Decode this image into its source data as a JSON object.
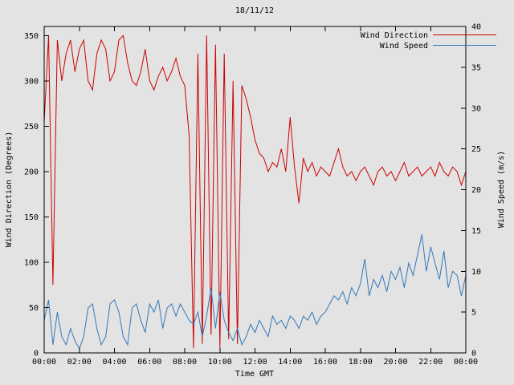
{
  "chart_data": {
    "type": "line",
    "title": "18/11/12",
    "xlabel": "Time GMT",
    "ylabel_left": "Wind Direction (Degrees)",
    "ylabel_right": "Wind Speed (m/s)",
    "grid": false,
    "legend_position": "top-right",
    "x_range_hours": [
      0,
      24
    ],
    "x_tick_labels": [
      "00:00",
      "02:00",
      "04:00",
      "06:00",
      "08:00",
      "10:00",
      "12:00",
      "14:00",
      "16:00",
      "18:00",
      "20:00",
      "22:00",
      "00:00"
    ],
    "y_left": {
      "min": 0,
      "max": 360,
      "ticks": [
        0,
        50,
        100,
        150,
        200,
        250,
        300,
        350
      ]
    },
    "y_right": {
      "min": 0,
      "max": 40,
      "ticks": [
        0,
        5,
        10,
        15,
        20,
        25,
        30,
        35,
        40
      ]
    },
    "x_hours": [
      0,
      0.25,
      0.5,
      0.75,
      1,
      1.25,
      1.5,
      1.75,
      2,
      2.25,
      2.5,
      2.75,
      3,
      3.25,
      3.5,
      3.75,
      4,
      4.25,
      4.5,
      4.75,
      5,
      5.25,
      5.5,
      5.75,
      6,
      6.25,
      6.5,
      6.75,
      7,
      7.25,
      7.5,
      7.75,
      8,
      8.25,
      8.5,
      8.75,
      9,
      9.25,
      9.5,
      9.75,
      10,
      10.25,
      10.5,
      10.75,
      11,
      11.25,
      11.5,
      11.75,
      12,
      12.25,
      12.5,
      12.75,
      13,
      13.25,
      13.5,
      13.75,
      14,
      14.25,
      14.5,
      14.75,
      15,
      15.25,
      15.5,
      15.75,
      16,
      16.25,
      16.5,
      16.75,
      17,
      17.25,
      17.5,
      17.75,
      18,
      18.25,
      18.5,
      18.75,
      19,
      19.25,
      19.5,
      19.75,
      20,
      20.25,
      20.5,
      20.75,
      21,
      21.25,
      21.5,
      21.75,
      22,
      22.25,
      22.5,
      22.75,
      23,
      23.25,
      23.5,
      23.75,
      24
    ],
    "series": [
      {
        "name": "Wind Direction",
        "axis": "left",
        "color": "#cc0000",
        "values": [
          255,
          350,
          75,
          345,
          300,
          330,
          345,
          310,
          335,
          345,
          300,
          290,
          330,
          345,
          335,
          300,
          310,
          345,
          350,
          320,
          300,
          295,
          310,
          335,
          300,
          290,
          305,
          315,
          300,
          310,
          325,
          305,
          295,
          240,
          5,
          330,
          10,
          350,
          20,
          340,
          5,
          330,
          15,
          300,
          10,
          295,
          280,
          260,
          235,
          220,
          215,
          200,
          210,
          205,
          225,
          200,
          260,
          205,
          165,
          215,
          200,
          210,
          195,
          205,
          200,
          195,
          210,
          225,
          205,
          195,
          200,
          190,
          200,
          205,
          195,
          185,
          200,
          205,
          195,
          200,
          190,
          200,
          210,
          195,
          200,
          205,
          195,
          200,
          205,
          195,
          210,
          200,
          195,
          205,
          200,
          185,
          200
        ]
      },
      {
        "name": "Wind Speed",
        "axis": "right",
        "color": "#3377bb",
        "values": [
          4,
          6.5,
          1,
          5,
          2,
          1,
          3,
          1.5,
          0.5,
          2,
          5.5,
          6,
          3,
          1,
          2,
          6,
          6.5,
          5,
          2,
          1,
          5.5,
          6,
          4,
          2.5,
          6,
          5,
          6.5,
          3,
          5.5,
          6,
          4.5,
          6,
          5,
          4,
          3.5,
          5,
          2,
          4.5,
          8,
          3,
          7.5,
          4,
          2.5,
          1.5,
          3,
          1,
          2,
          3.5,
          2.5,
          4,
          3,
          2,
          4.5,
          3.5,
          4,
          3,
          4.5,
          4,
          3,
          4.5,
          4,
          5,
          3.5,
          4.5,
          5,
          6,
          7,
          6.5,
          7.5,
          6,
          8,
          7,
          8.5,
          11.5,
          7,
          9,
          8,
          9.5,
          7.5,
          10,
          9,
          10.5,
          8,
          11,
          9.5,
          12,
          14.5,
          10,
          13,
          11,
          9,
          12.5,
          8,
          10,
          9.5,
          7,
          9.5
        ]
      }
    ]
  }
}
